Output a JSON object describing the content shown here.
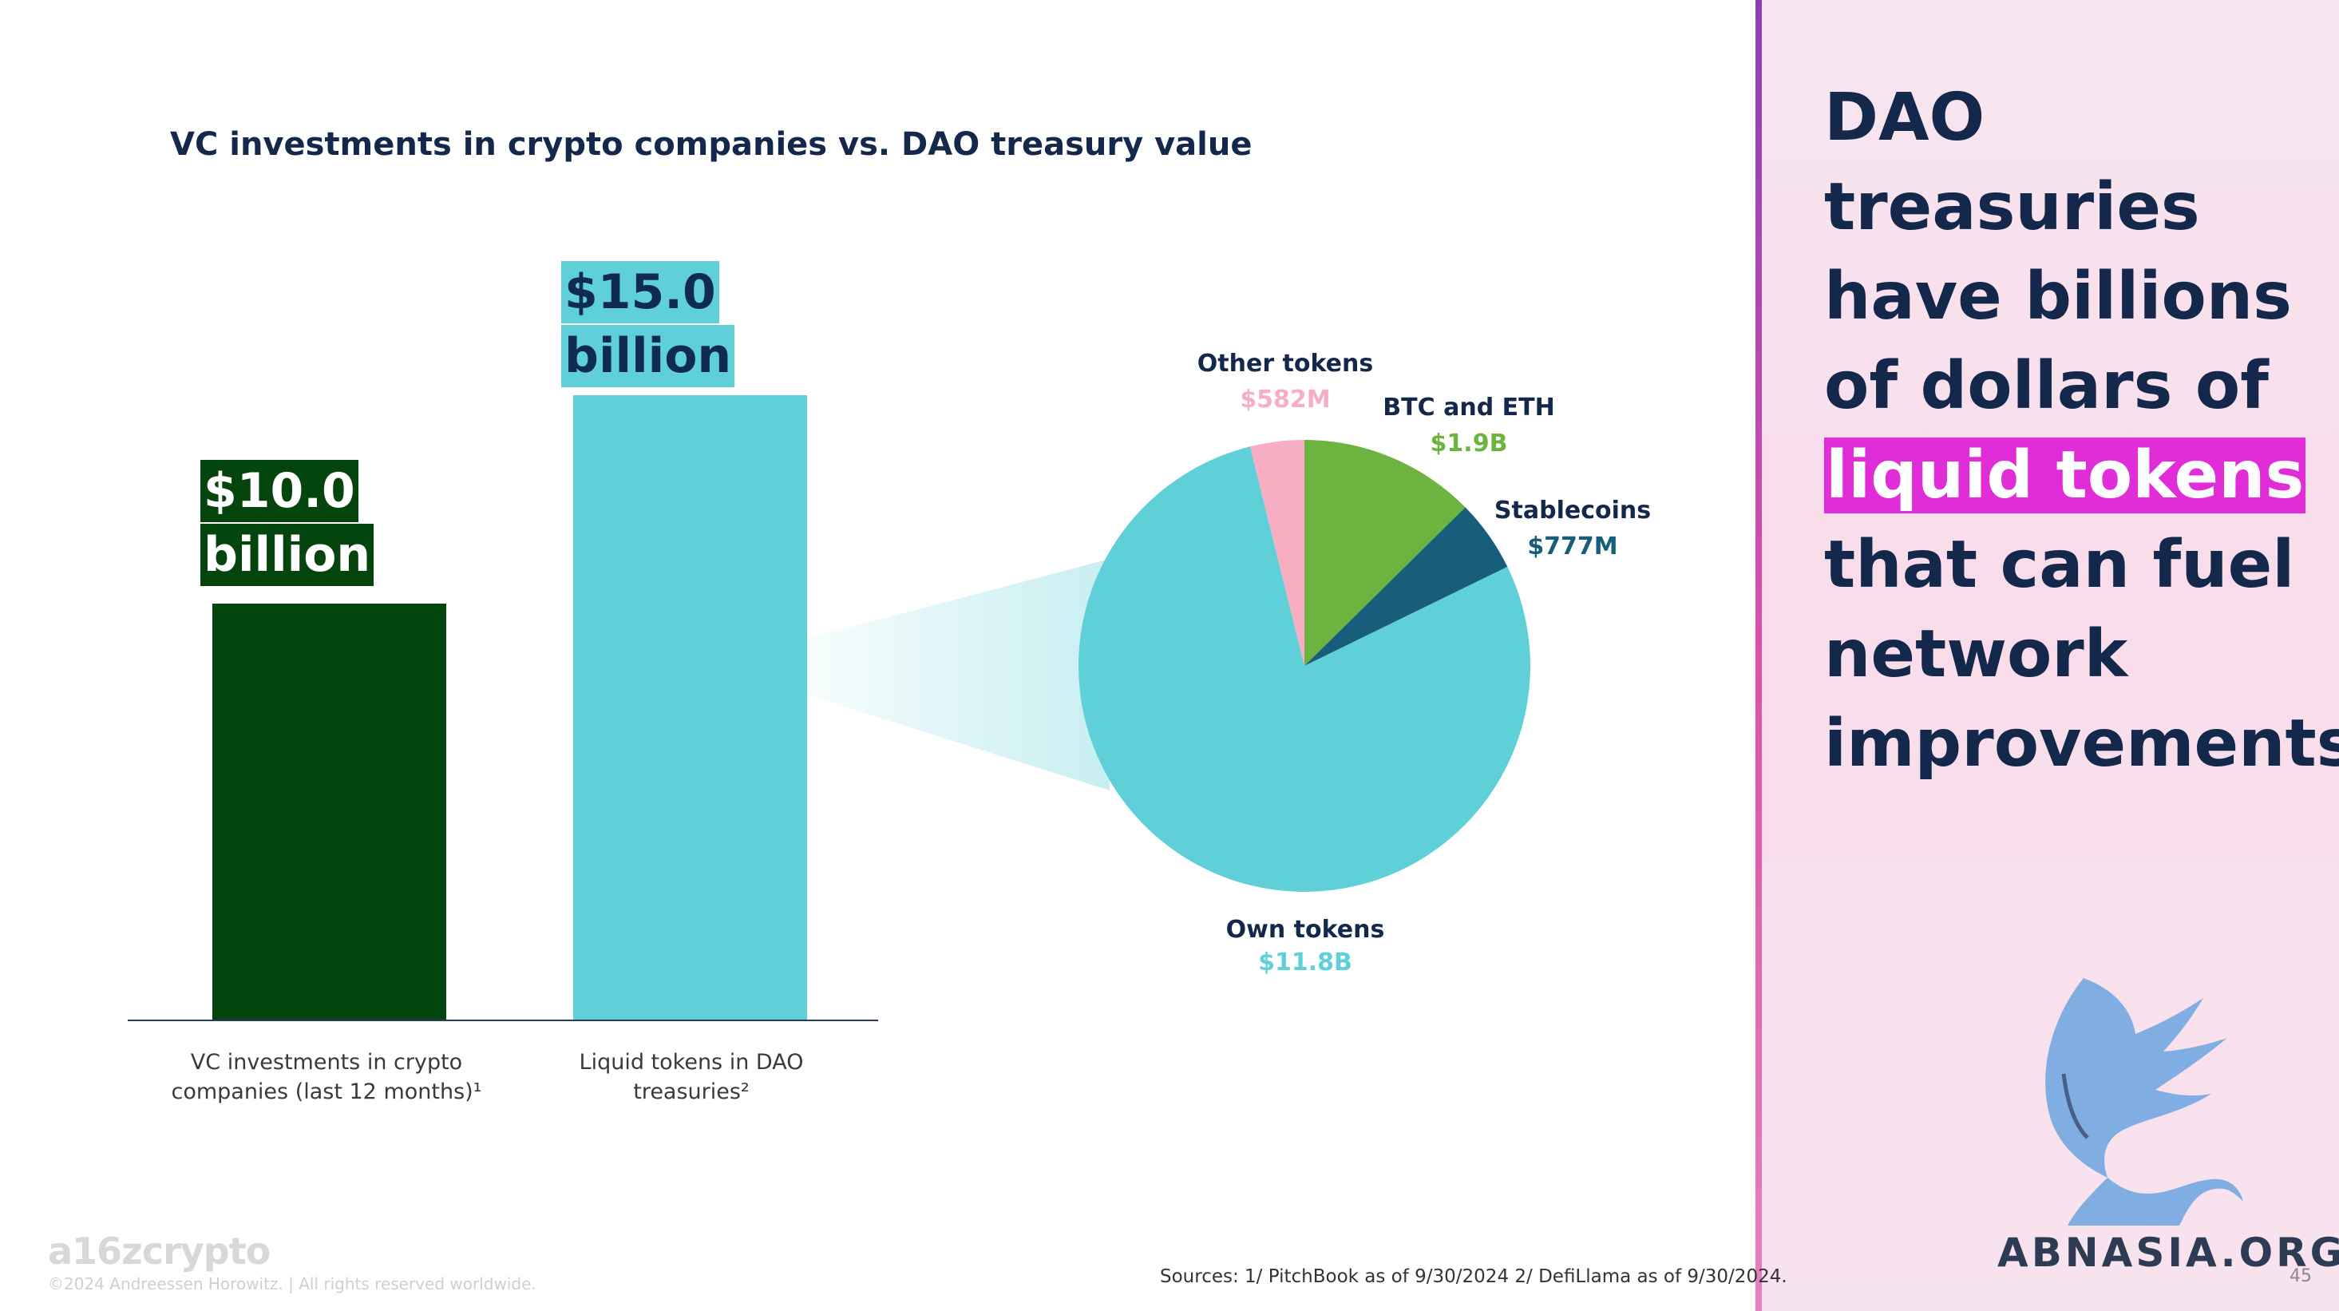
{
  "chart_data": [
    {
      "type": "bar",
      "title": "VC investments in crypto companies vs. DAO treasury value",
      "categories": [
        "VC investments in crypto companies (last 12 months)¹",
        "Liquid tokens in DAO treasuries²"
      ],
      "category_lines": [
        [
          "VC investments in crypto",
          "companies (last 12 months)¹"
        ],
        [
          "Liquid tokens in DAO",
          "treasuries²"
        ]
      ],
      "values": [
        10.0,
        15.0
      ],
      "unit": "billion USD",
      "data_labels": [
        [
          "$10.0",
          "billion"
        ],
        [
          "$15.0",
          "billion"
        ]
      ],
      "bar_colors": [
        "#04450e",
        "#5fd0d8"
      ],
      "ylim": [
        0,
        15
      ]
    },
    {
      "type": "pie",
      "slices": [
        {
          "label": "Own tokens",
          "value_text": "$11.8B",
          "value": 11.8,
          "color": "#5fd0d8",
          "label_color": "#5fd0d8"
        },
        {
          "label": "Other tokens",
          "value_text": "$582M",
          "value": 0.582,
          "color": "#f7aec3",
          "label_color": "#f7aec3"
        },
        {
          "label": "BTC and ETH",
          "value_text": "$1.9B",
          "value": 1.9,
          "color": "#6cb43f",
          "label_color": "#6cb43f"
        },
        {
          "label": "Stablecoins",
          "value_text": "$777M",
          "value": 0.777,
          "color": "#185e7a",
          "label_color": "#185e7a"
        }
      ]
    }
  ],
  "headline": {
    "before": "DAO treasuries have billions of dollars of ",
    "highlight": "liquid tokens",
    "after": " that can fuel network improvements",
    "highlight_color": "#e12dd7"
  },
  "footer": {
    "logo": "a16zcrypto",
    "copyright": "©2024 Andreessen Horowitz. | All rights reserved worldwide.",
    "sources": "Sources: 1/ PitchBook as of 9/30/2024 2/ DefiLlama as of 9/30/2024.",
    "page_number": "45"
  },
  "watermark": {
    "text": "ABNASIA.ORG"
  }
}
